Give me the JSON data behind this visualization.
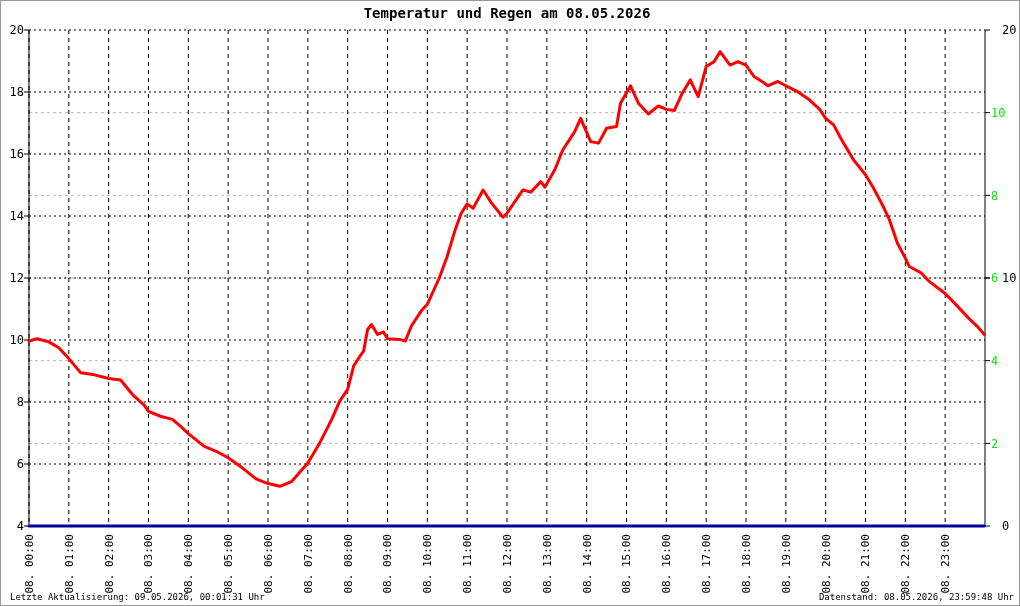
{
  "chart_data": {
    "type": "line",
    "title": "Temperatur und Regen am 08.05.2026",
    "annotations": [
      "Letzte Aktualisierung: 09.05.2026, 00:01:31 Uhr",
      "Datenstand: 08.05.2026, 23:59:48 Uhr"
    ],
    "xlim": [
      "2026-05-08T00:00",
      "2026-05-09T00:00"
    ],
    "xticks": [
      {
        "value": "2026-05-08T00:00",
        "label": "08. 00:00"
      },
      {
        "value": "2026-05-08T01:00",
        "label": "08. 01:00"
      },
      {
        "value": "2026-05-08T02:00",
        "label": "08. 02:00"
      },
      {
        "value": "2026-05-08T03:00",
        "label": "08. 03:00"
      },
      {
        "value": "2026-05-08T04:00",
        "label": "08. 04:00"
      },
      {
        "value": "2026-05-08T05:00",
        "label": "08. 05:00"
      },
      {
        "value": "2026-05-08T06:00",
        "label": "08. 06:00"
      },
      {
        "value": "2026-05-08T07:00",
        "label": "08. 07:00"
      },
      {
        "value": "2026-05-08T08:00",
        "label": "08. 08:00"
      },
      {
        "value": "2026-05-08T09:00",
        "label": "08. 09:00"
      },
      {
        "value": "2026-05-08T10:00",
        "label": "08. 10:00"
      },
      {
        "value": "2026-05-08T11:00",
        "label": "08. 11:00"
      },
      {
        "value": "2026-05-08T12:00",
        "label": "08. 12:00"
      },
      {
        "value": "2026-05-08T13:00",
        "label": "08. 13:00"
      },
      {
        "value": "2026-05-08T14:00",
        "label": "08. 14:00"
      },
      {
        "value": "2026-05-08T15:00",
        "label": "08. 15:00"
      },
      {
        "value": "2026-05-08T16:00",
        "label": "08. 16:00"
      },
      {
        "value": "2026-05-08T17:00",
        "label": "08. 17:00"
      },
      {
        "value": "2026-05-08T18:00",
        "label": "08. 18:00"
      },
      {
        "value": "2026-05-08T19:00",
        "label": "08. 19:00"
      },
      {
        "value": "2026-05-08T20:00",
        "label": "08. 20:00"
      },
      {
        "value": "2026-05-08T21:00",
        "label": "08. 21:00"
      },
      {
        "value": "2026-05-08T22:00",
        "label": "08. 22:00"
      },
      {
        "value": "2026-05-08T23:00",
        "label": "08. 23:00"
      }
    ],
    "ylim": [
      4,
      20
    ],
    "yticks": [
      4,
      6,
      8,
      10,
      12,
      14,
      16,
      18,
      20
    ],
    "y2lim": [
      0,
      12
    ],
    "y2ticks": [
      2,
      4,
      6,
      8,
      10
    ],
    "y3lim": [
      0,
      20
    ],
    "y3ticks": [
      0,
      10,
      20
    ],
    "grid": true,
    "marker": "none",
    "line_style": "solid",
    "series": [
      {
        "color": "#ff0000",
        "x": [
          "2026-05-08T00:00",
          "2026-05-08T00:12",
          "2026-05-08T00:30",
          "2026-05-08T00:45",
          "2026-05-08T01:00",
          "2026-05-08T01:18",
          "2026-05-08T01:36",
          "2026-05-08T02:00",
          "2026-05-08T02:18",
          "2026-05-08T02:36",
          "2026-05-08T02:54",
          "2026-05-08T03:00",
          "2026-05-08T03:18",
          "2026-05-08T03:36",
          "2026-05-08T03:48",
          "2026-05-08T04:00",
          "2026-05-08T04:24",
          "2026-05-08T04:42",
          "2026-05-08T05:00",
          "2026-05-08T05:18",
          "2026-05-08T05:42",
          "2026-05-08T06:00",
          "2026-05-08T06:18",
          "2026-05-08T06:36",
          "2026-05-08T07:00",
          "2026-05-08T07:18",
          "2026-05-08T07:36",
          "2026-05-08T07:48",
          "2026-05-08T08:00",
          "2026-05-08T08:09",
          "2026-05-08T08:18",
          "2026-05-08T08:24",
          "2026-05-08T08:30",
          "2026-05-08T08:36",
          "2026-05-08T08:45",
          "2026-05-08T08:54",
          "2026-05-08T09:00",
          "2026-05-08T09:18",
          "2026-05-08T09:27",
          "2026-05-08T09:36",
          "2026-05-08T09:51",
          "2026-05-08T10:00",
          "2026-05-08T10:18",
          "2026-05-08T10:30",
          "2026-05-08T10:42",
          "2026-05-08T10:51",
          "2026-05-08T11:00",
          "2026-05-08T11:09",
          "2026-05-08T11:24",
          "2026-05-08T11:36",
          "2026-05-08T11:54",
          "2026-05-08T12:00",
          "2026-05-08T12:24",
          "2026-05-08T12:36",
          "2026-05-08T12:51",
          "2026-05-08T12:57",
          "2026-05-08T13:12",
          "2026-05-08T13:24",
          "2026-05-08T13:42",
          "2026-05-08T13:51",
          "2026-05-08T14:06",
          "2026-05-08T14:18",
          "2026-05-08T14:30",
          "2026-05-08T14:45",
          "2026-05-08T14:51",
          "2026-05-08T15:06",
          "2026-05-08T15:18",
          "2026-05-08T15:33",
          "2026-05-08T15:48",
          "2026-05-08T16:00",
          "2026-05-08T16:12",
          "2026-05-08T16:24",
          "2026-05-08T16:36",
          "2026-05-08T16:48",
          "2026-05-08T17:00",
          "2026-05-08T17:12",
          "2026-05-08T17:21",
          "2026-05-08T17:36",
          "2026-05-08T17:48",
          "2026-05-08T18:00",
          "2026-05-08T18:12",
          "2026-05-08T18:27",
          "2026-05-08T18:33",
          "2026-05-08T18:48",
          "2026-05-08T19:00",
          "2026-05-08T19:18",
          "2026-05-08T19:36",
          "2026-05-08T19:51",
          "2026-05-08T20:00",
          "2026-05-08T20:12",
          "2026-05-08T20:24",
          "2026-05-08T20:42",
          "2026-05-08T21:00",
          "2026-05-08T21:12",
          "2026-05-08T21:24",
          "2026-05-08T21:36",
          "2026-05-08T21:48",
          "2026-05-08T22:00",
          "2026-05-08T22:06",
          "2026-05-08T22:24",
          "2026-05-08T22:36",
          "2026-05-08T23:00",
          "2026-05-08T23:18",
          "2026-05-08T23:36",
          "2026-05-08T23:48",
          "2026-05-08T23:59"
        ],
        "values": [
          9.97,
          10.04,
          9.94,
          9.75,
          9.4,
          8.94,
          8.89,
          8.76,
          8.71,
          8.24,
          7.89,
          7.7,
          7.54,
          7.44,
          7.22,
          6.98,
          6.57,
          6.41,
          6.2,
          5.93,
          5.52,
          5.37,
          5.28,
          5.44,
          6.03,
          6.68,
          7.44,
          8.03,
          8.41,
          9.16,
          9.46,
          9.64,
          10.34,
          10.5,
          10.18,
          10.26,
          10.04,
          10.02,
          9.97,
          10.45,
          10.94,
          11.15,
          12,
          12.7,
          13.56,
          14.09,
          14.39,
          14.25,
          14.84,
          14.44,
          13.96,
          14.09,
          14.84,
          14.77,
          15.11,
          14.93,
          15.49,
          16.13,
          16.72,
          17.15,
          16.4,
          16.35,
          16.83,
          16.89,
          17.64,
          18.2,
          17.64,
          17.29,
          17.55,
          17.44,
          17.4,
          17.96,
          18.39,
          17.85,
          18.82,
          18.98,
          19.3,
          18.87,
          18.98,
          18.87,
          18.5,
          18.3,
          18.2,
          18.34,
          18.2,
          18.01,
          17.74,
          17.44,
          17.15,
          16.94,
          16.46,
          15.81,
          15.33,
          14.9,
          14.42,
          13.88,
          13.13,
          12.64,
          12.37,
          12.16,
          11.89,
          11.5,
          11.1,
          10.69,
          10.45,
          10.18
        ]
      },
      {
        "color": "#000099",
        "axis": "y2",
        "x": [
          "2026-05-08T00:00",
          "2026-05-08T23:59"
        ],
        "values": [
          0,
          0
        ]
      }
    ]
  }
}
